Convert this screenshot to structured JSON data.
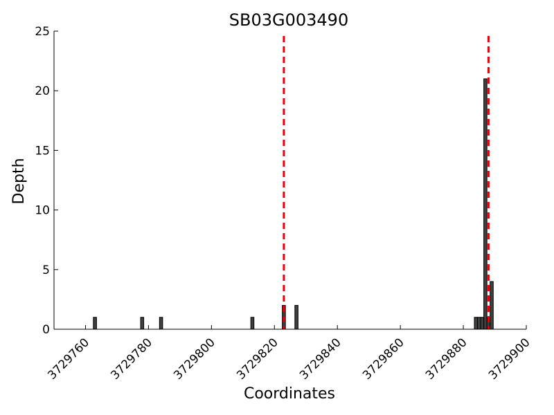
{
  "chart_data": {
    "type": "bar",
    "title": "SB03G003490",
    "xlabel": "Coordinates",
    "ylabel": "Depth",
    "xlim": [
      3729750,
      3729900
    ],
    "ylim": [
      0,
      25
    ],
    "x_ticks": [
      3729760,
      3729780,
      3729800,
      3729820,
      3729840,
      3729860,
      3729880,
      3729900
    ],
    "x_tick_labels": [
      "3729760",
      "3729780",
      "3729800",
      "3729820",
      "3729840",
      "3729860",
      "3729880",
      "3729900"
    ],
    "y_ticks": [
      0,
      5,
      10,
      15,
      20,
      25
    ],
    "y_tick_labels": [
      "0",
      "5",
      "10",
      "15",
      "20",
      "25"
    ],
    "bars": [
      {
        "x": 3729763,
        "value": 1
      },
      {
        "x": 3729778,
        "value": 1
      },
      {
        "x": 3729784,
        "value": 1
      },
      {
        "x": 3729813,
        "value": 1
      },
      {
        "x": 3729823,
        "value": 2
      },
      {
        "x": 3729827,
        "value": 2
      },
      {
        "x": 3729884,
        "value": 1
      },
      {
        "x": 3729885,
        "value": 1
      },
      {
        "x": 3729886,
        "value": 1
      },
      {
        "x": 3729887,
        "value": 21
      },
      {
        "x": 3729888,
        "value": 1
      },
      {
        "x": 3729889,
        "value": 4
      }
    ],
    "vlines": [
      3729823,
      3729888
    ],
    "bar_color": "#404040",
    "vline_color": "#e8000b",
    "grid": false
  }
}
